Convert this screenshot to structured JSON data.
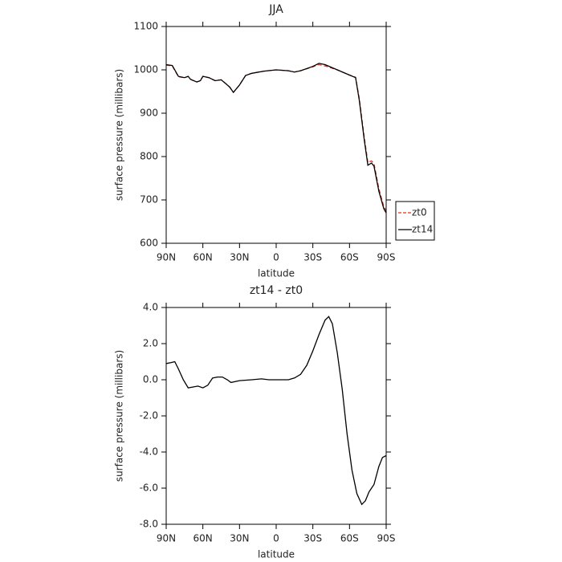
{
  "chart_data": [
    {
      "type": "line",
      "title": "JJA",
      "xlabel": "latitude",
      "ylabel": "surface pressure (millibars)",
      "x": [
        90,
        85,
        80,
        75,
        72,
        70,
        65,
        62,
        60,
        55,
        50,
        45,
        42,
        38,
        35,
        30,
        25,
        20,
        10,
        0,
        -10,
        -15,
        -20,
        -30,
        -35,
        -40,
        -50,
        -60,
        -65,
        -68,
        -72,
        -75,
        -78,
        -80,
        -84,
        -88,
        -90
      ],
      "series": [
        {
          "name": "zt0",
          "color": "#e0301e",
          "line_style": "dashed",
          "values": [
            1011,
            1009,
            984,
            982,
            985,
            978,
            972,
            975,
            985,
            982,
            975,
            977,
            970,
            960,
            948,
            965,
            987,
            992,
            997,
            1000,
            998,
            995,
            998,
            1007,
            1012,
            1009,
            1000,
            988,
            983,
            934,
            846,
            786,
            790,
            784,
            726,
            685,
            675
          ]
        },
        {
          "name": "zt14",
          "color": "#000000",
          "line_style": "solid",
          "values": [
            1012,
            1010,
            985,
            982,
            985,
            978,
            972,
            975,
            985,
            982,
            975,
            977,
            970,
            960,
            948,
            965,
            987,
            992,
            997,
            1000,
            998,
            995,
            998,
            1008,
            1015,
            1012,
            1000,
            988,
            982,
            930,
            840,
            780,
            785,
            778,
            720,
            680,
            670
          ]
        }
      ],
      "xlim": [
        90,
        -90
      ],
      "xticks": [
        {
          "value": 90,
          "label": "90N"
        },
        {
          "value": 60,
          "label": "60N"
        },
        {
          "value": 30,
          "label": "30N"
        },
        0,
        {
          "value": -30,
          "label": "30S"
        },
        {
          "value": -60,
          "label": "60S"
        },
        {
          "value": -90,
          "label": "90S"
        }
      ],
      "ylim": [
        600,
        1100
      ],
      "yticks": [
        600,
        700,
        800,
        900,
        1000,
        1100
      ],
      "legend": "outside-right"
    },
    {
      "type": "line",
      "title": "zt14 - zt0",
      "xlabel": "latitude",
      "ylabel": "surface pressure (millibars)",
      "x": [
        90,
        86,
        83,
        80,
        76,
        72,
        68,
        64,
        60,
        56,
        52,
        48,
        44,
        40,
        37,
        30,
        20,
        12,
        6,
        0,
        -10,
        -15,
        -20,
        -25,
        -30,
        -35,
        -40,
        -43,
        -46,
        -50,
        -54,
        -58,
        -62,
        -66,
        -70,
        -73,
        -76,
        -80,
        -84,
        -87,
        -90
      ],
      "series": [
        {
          "name": "zt14 - zt0",
          "color": "#000000",
          "line_style": "solid",
          "values": [
            0.9,
            0.95,
            1.0,
            0.6,
            0.0,
            -0.45,
            -0.4,
            -0.35,
            -0.45,
            -0.3,
            0.1,
            0.15,
            0.15,
            0.0,
            -0.15,
            -0.05,
            0.0,
            0.05,
            0.0,
            0.0,
            0.0,
            0.1,
            0.3,
            0.8,
            1.6,
            2.5,
            3.3,
            3.5,
            3.1,
            1.5,
            -0.5,
            -3.0,
            -5.0,
            -6.3,
            -6.9,
            -6.7,
            -6.2,
            -5.8,
            -4.8,
            -4.3,
            -4.2
          ]
        }
      ],
      "xlim": [
        90,
        -90
      ],
      "xticks": [
        {
          "value": 90,
          "label": "90N"
        },
        {
          "value": 60,
          "label": "60N"
        },
        {
          "value": 30,
          "label": "30N"
        },
        0,
        {
          "value": -30,
          "label": "30S"
        },
        {
          "value": -60,
          "label": "60S"
        },
        {
          "value": -90,
          "label": "90S"
        }
      ],
      "ylim": [
        -8,
        4
      ],
      "yticks": [
        {
          "value": -8,
          "label": "-8.0"
        },
        {
          "value": -6,
          "label": "-6.0"
        },
        {
          "value": -4,
          "label": "-4.0"
        },
        {
          "value": -2,
          "label": "-2.0"
        },
        {
          "value": 0,
          "label": "0.0"
        },
        {
          "value": 2,
          "label": "2.0"
        },
        {
          "value": 4,
          "label": "4.0"
        }
      ]
    }
  ]
}
